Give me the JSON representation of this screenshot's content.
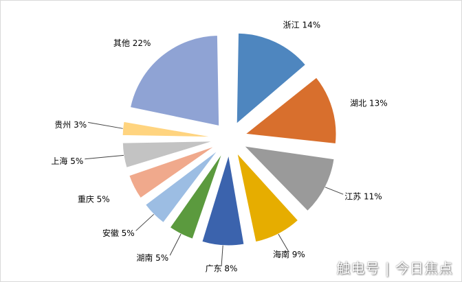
{
  "chart_data": {
    "type": "pie",
    "exploded": true,
    "slices": [
      {
        "label": "浙江 14%",
        "value": 14,
        "color": "#4e86bf"
      },
      {
        "label": "湖北 13%",
        "value": 13,
        "color": "#d86f2d"
      },
      {
        "label": "江苏 11%",
        "value": 11,
        "color": "#9a9a9a"
      },
      {
        "label": "海南 9%",
        "value": 9,
        "color": "#e6ad00"
      },
      {
        "label": "广东 8%",
        "value": 8,
        "color": "#3b63ad"
      },
      {
        "label": "湖南 5%",
        "value": 5,
        "color": "#5b9a3e"
      },
      {
        "label": "安徽 5%",
        "value": 5,
        "color": "#9cbde3"
      },
      {
        "label": "重庆 5%",
        "value": 5,
        "color": "#f0a98c"
      },
      {
        "label": "上海 5%",
        "value": 5,
        "color": "#c3c3c3"
      },
      {
        "label": "贵州 3%",
        "value": 3,
        "color": "#ffd47f"
      },
      {
        "label": "其他 22%",
        "value": 22,
        "color": "#8fa3d4"
      }
    ]
  },
  "watermark": "触电号 | 今日焦点"
}
